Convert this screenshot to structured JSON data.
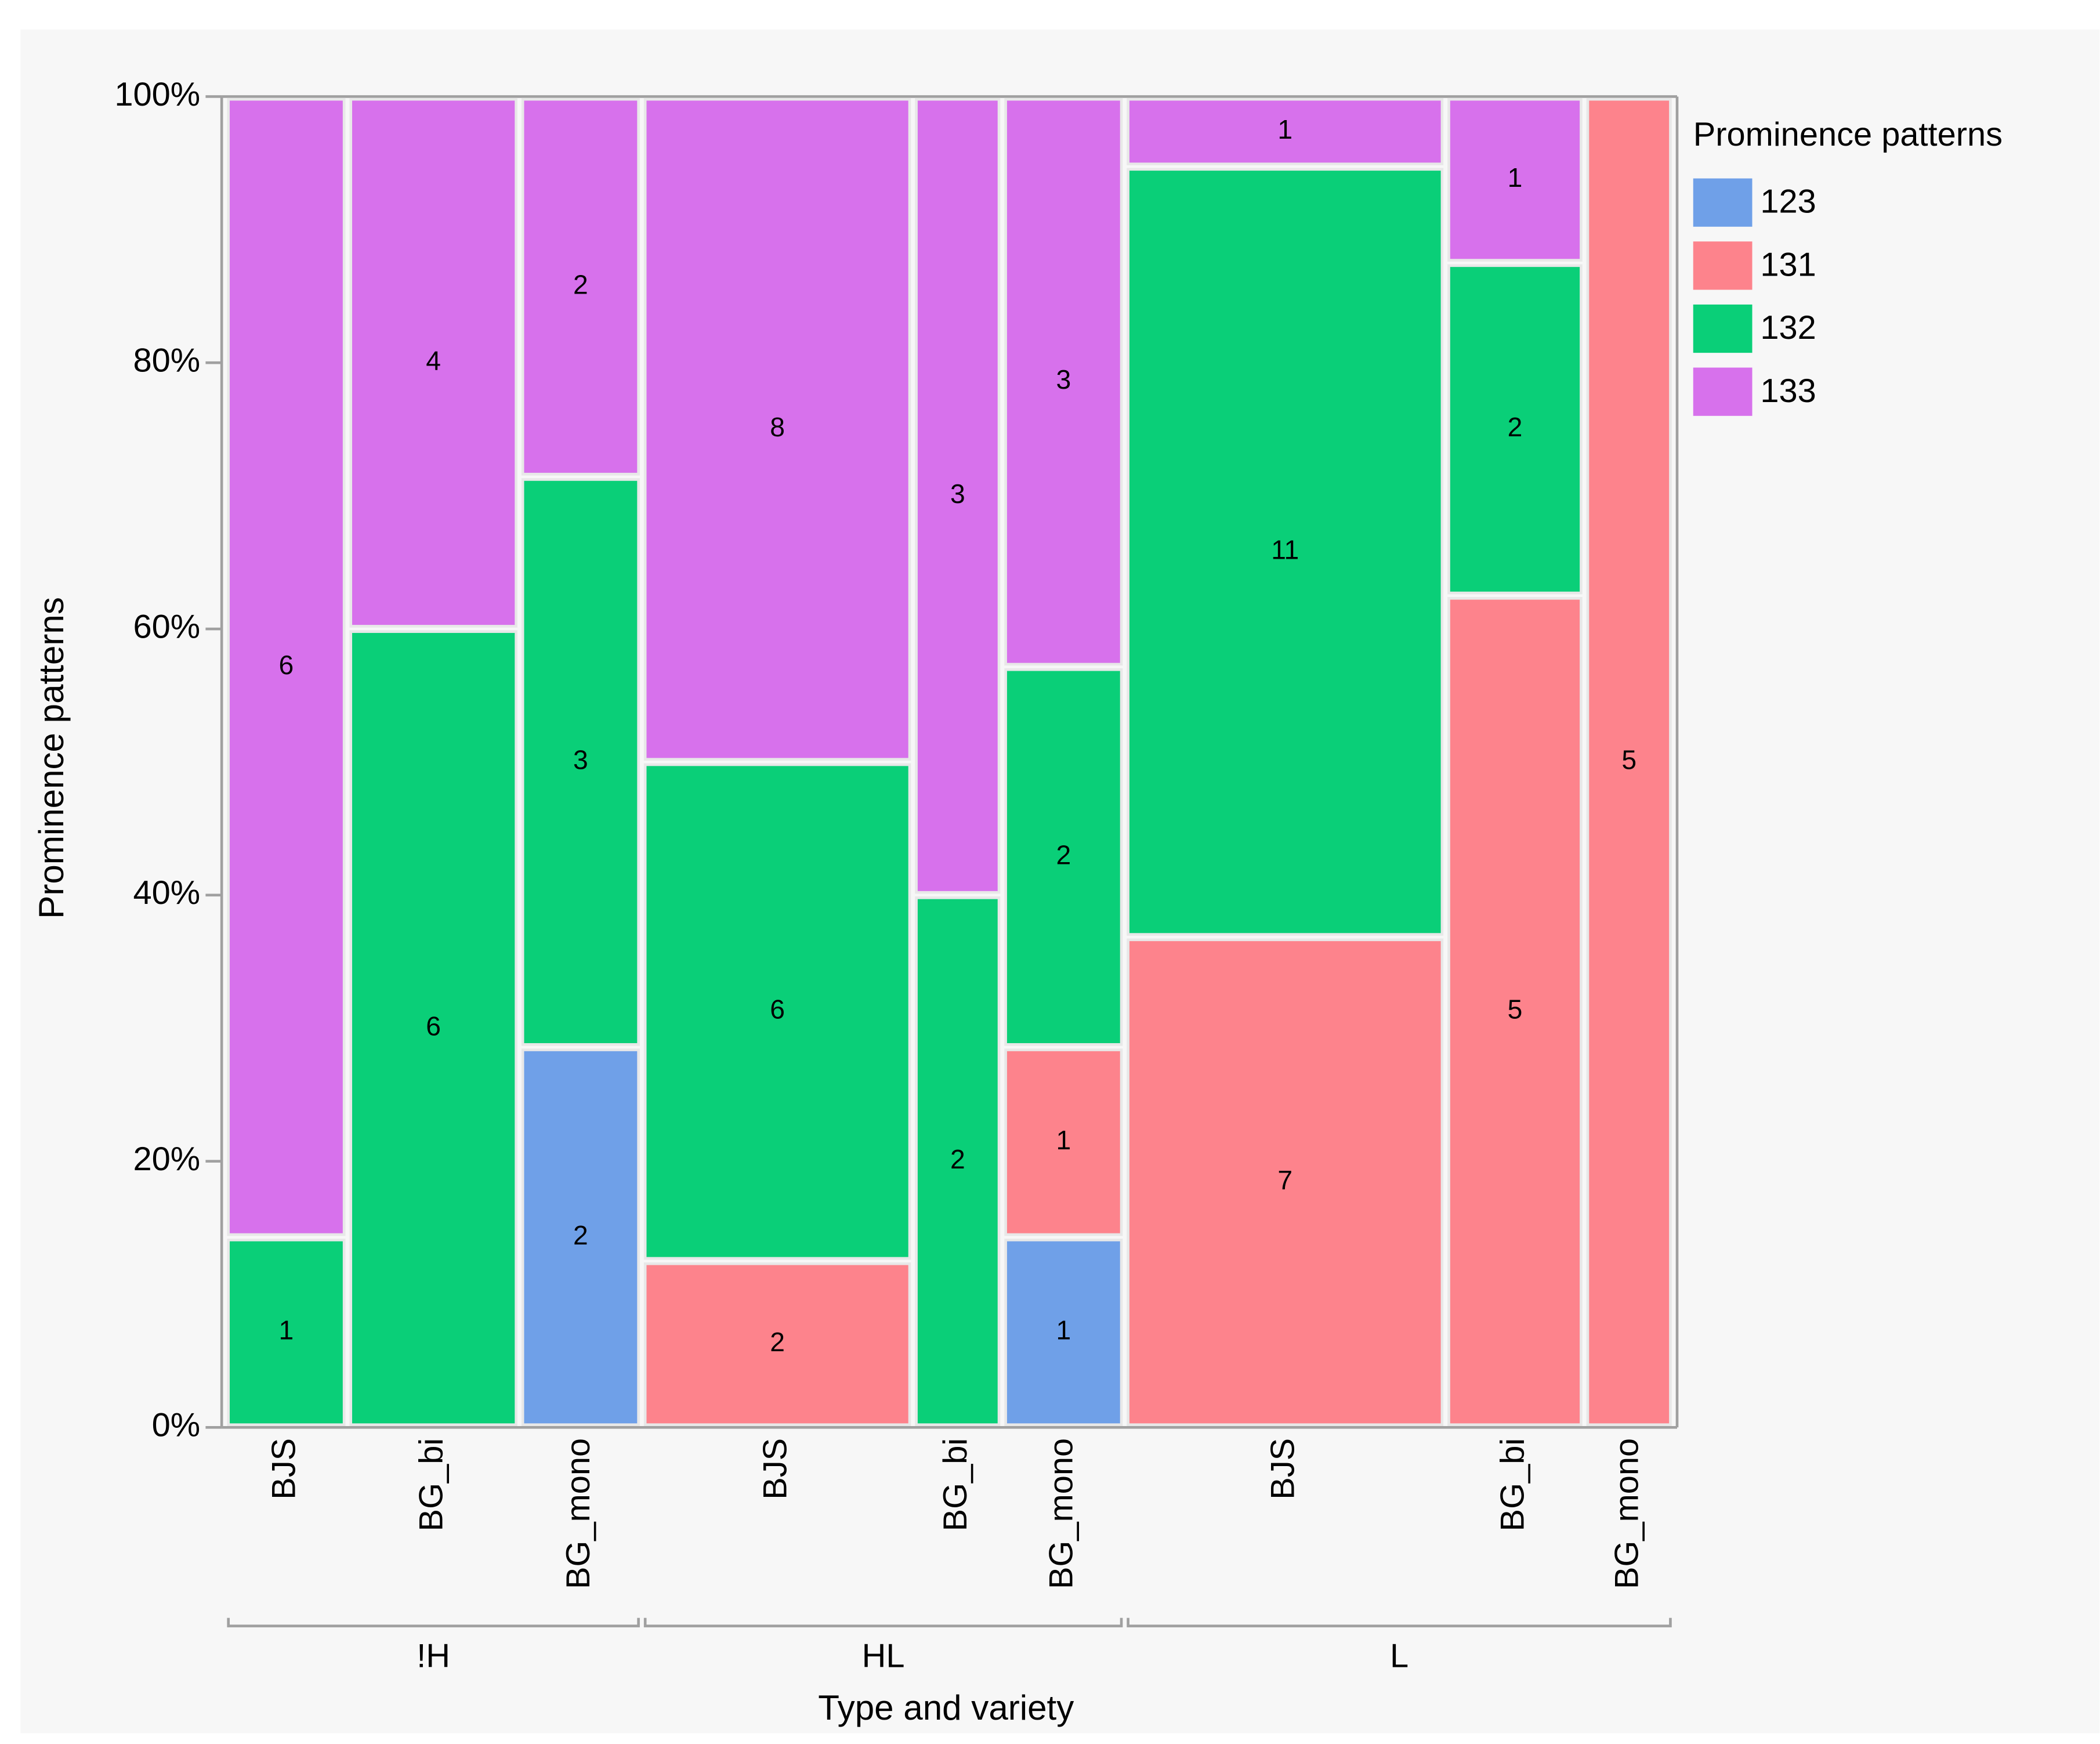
{
  "chart_data": {
    "type": "mosaic",
    "y_label": "Prominence patterns",
    "x_label": "Type and variety",
    "legend_title": "Prominence patterns",
    "groups": [
      {
        "label": "!H",
        "categories": [
          "BJS",
          "BG_bi",
          "BG_mono"
        ]
      },
      {
        "label": "HL",
        "categories": [
          "BJS",
          "BG_bi",
          "BG_mono"
        ]
      },
      {
        "label": "L",
        "categories": [
          "BJS",
          "BG_bi",
          "BG_mono"
        ]
      }
    ],
    "series": [
      {
        "name": "123",
        "color": "#6fa0e8",
        "values": [
          0,
          0,
          2,
          0,
          0,
          1,
          0,
          0,
          0
        ]
      },
      {
        "name": "131",
        "color": "#fd838c",
        "values": [
          0,
          0,
          0,
          2,
          0,
          1,
          7,
          5,
          5
        ]
      },
      {
        "name": "132",
        "color": "#0acf78",
        "values": [
          1,
          6,
          3,
          6,
          2,
          2,
          11,
          2,
          0
        ]
      },
      {
        "name": "133",
        "color": "#d771ec",
        "values": [
          6,
          4,
          2,
          8,
          3,
          3,
          1,
          1,
          0
        ]
      }
    ],
    "ylim": [
      0,
      100
    ],
    "yticks": [
      {
        "value": 0,
        "label": "0%"
      },
      {
        "value": 20,
        "label": "20%"
      },
      {
        "value": 40,
        "label": "40%"
      },
      {
        "value": 60,
        "label": "60%"
      },
      {
        "value": 80,
        "label": "80%"
      },
      {
        "value": 100,
        "label": "100%"
      }
    ],
    "legend": "right"
  }
}
